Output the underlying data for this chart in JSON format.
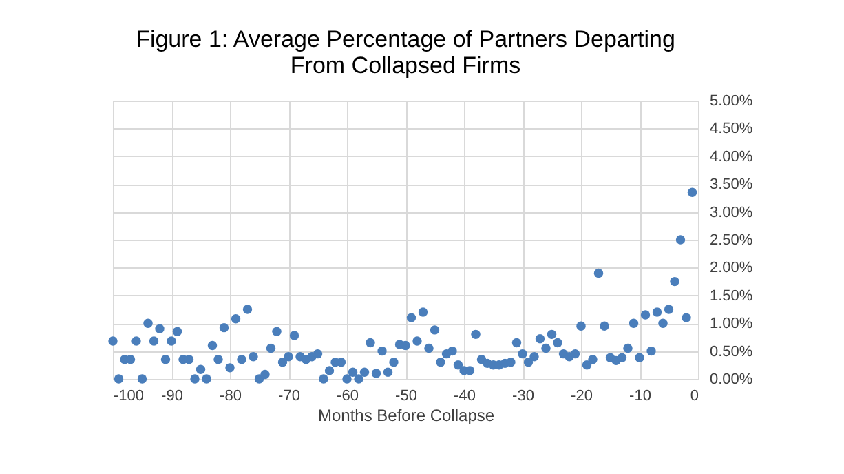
{
  "chart_data": {
    "type": "scatter",
    "title": [
      "Figure 1: Average Percentage of Partners Departing",
      "From Collapsed Firms"
    ],
    "xlabel": "Months Before Collapse",
    "x": [
      -100,
      -99,
      -98,
      -97,
      -96,
      -95,
      -94,
      -93,
      -92,
      -91,
      -90,
      -89,
      -88,
      -87,
      -86,
      -85,
      -84,
      -83,
      -82,
      -81,
      -80,
      -79,
      -78,
      -77,
      -76,
      -75,
      -74,
      -73,
      -72,
      -71,
      -70,
      -69,
      -68,
      -67,
      -66,
      -65,
      -64,
      -63,
      -62,
      -61,
      -60,
      -59,
      -58,
      -57,
      -56,
      -55,
      -54,
      -53,
      -52,
      -51,
      -50,
      -49,
      -48,
      -47,
      -46,
      -45,
      -44,
      -43,
      -42,
      -41,
      -40,
      -39,
      -38,
      -37,
      -36,
      -35,
      -34,
      -33,
      -32,
      -31,
      -30,
      -29,
      -28,
      -27,
      -26,
      -25,
      -24,
      -23,
      -22,
      -21,
      -20,
      -19,
      -18,
      -17,
      -16,
      -15,
      -14,
      -13,
      -12,
      -11,
      -10,
      -9,
      -8,
      -7,
      -6,
      -5,
      -4,
      -3,
      -2,
      -1
    ],
    "series": [
      {
        "color": "#4a7ebb",
        "values": [
          0.68,
          0.0,
          0.35,
          0.35,
          0.68,
          0.0,
          1.0,
          0.68,
          0.9,
          0.35,
          0.68,
          0.85,
          0.35,
          0.35,
          0.0,
          0.17,
          0.0,
          0.6,
          0.35,
          0.92,
          0.2,
          1.08,
          0.35,
          1.25,
          0.4,
          0.0,
          0.08,
          0.55,
          0.85,
          0.3,
          0.4,
          0.78,
          0.4,
          0.35,
          0.4,
          0.45,
          0.0,
          0.15,
          0.3,
          0.3,
          0.0,
          0.12,
          0.0,
          0.12,
          0.65,
          0.1,
          0.5,
          0.12,
          0.3,
          0.62,
          0.6,
          1.1,
          0.68,
          1.2,
          0.55,
          0.88,
          0.3,
          0.45,
          0.5,
          0.25,
          0.15,
          0.15,
          0.8,
          0.35,
          0.28,
          0.25,
          0.25,
          0.28,
          0.3,
          0.65,
          0.45,
          0.3,
          0.4,
          0.72,
          0.55,
          0.8,
          0.65,
          0.45,
          0.4,
          0.45,
          0.95,
          0.25,
          0.35,
          1.9,
          0.95,
          0.38,
          0.33,
          0.38,
          0.55,
          1.0,
          0.38,
          1.15,
          0.5,
          1.2,
          1.0,
          1.25,
          1.75,
          2.5,
          1.1,
          3.35
        ]
      }
    ],
    "xlim": [
      -100,
      0
    ],
    "xticks": [
      -100,
      -90,
      -80,
      -70,
      -60,
      -50,
      -40,
      -30,
      -20,
      -10,
      0
    ],
    "ylim": [
      0,
      5
    ],
    "yticks": [
      {
        "value": 0,
        "label": "0.00%"
      },
      {
        "value": 0.5,
        "label": "0.50%"
      },
      {
        "value": 1,
        "label": "1.00%"
      },
      {
        "value": 1.5,
        "label": "1.50%"
      },
      {
        "value": 2,
        "label": "2.00%"
      },
      {
        "value": 2.5,
        "label": "2.50%"
      },
      {
        "value": 3,
        "label": "3.00%"
      },
      {
        "value": 3.5,
        "label": "3.50%"
      },
      {
        "value": 4,
        "label": "4.00%"
      },
      {
        "value": 4.5,
        "label": "4.50%"
      },
      {
        "value": 5,
        "label": "5.00%"
      }
    ],
    "grid": true,
    "marker": "circle",
    "legend": false
  }
}
